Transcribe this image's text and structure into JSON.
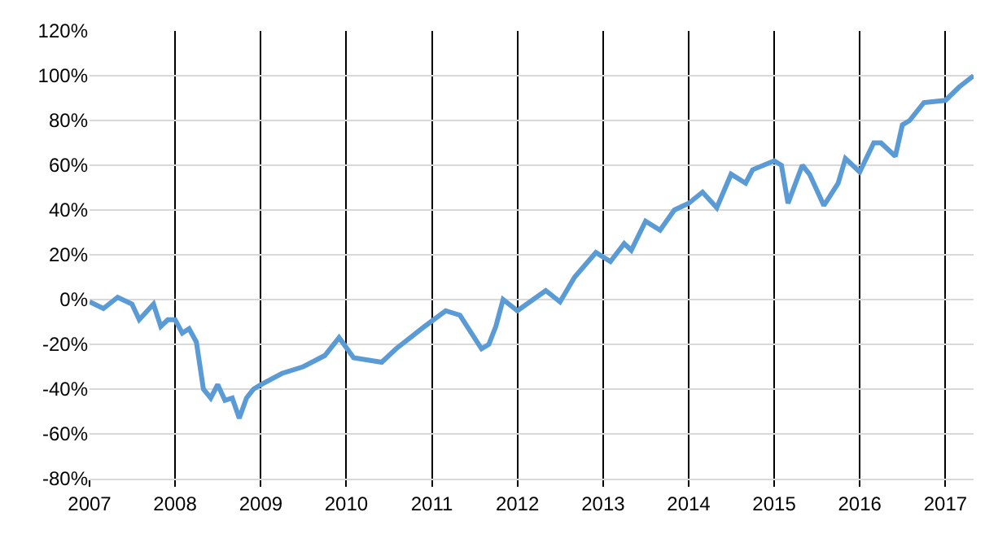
{
  "chart_data": {
    "type": "line",
    "grid": true,
    "marker": "none",
    "line_style": "solid",
    "x": [
      "2007-01",
      "2007-03",
      "2007-05",
      "2007-07",
      "2007-08",
      "2007-10",
      "2007-11",
      "2007-12",
      "2008-01",
      "2008-02",
      "2008-03",
      "2008-04",
      "2008-05",
      "2008-06",
      "2008-07",
      "2008-08",
      "2008-09",
      "2008-10",
      "2008-11",
      "2008-12",
      "2009-01",
      "2009-04",
      "2009-07",
      "2009-10",
      "2009-12",
      "2010-02",
      "2010-06",
      "2010-08",
      "2010-12",
      "2011-03",
      "2011-05",
      "2011-08",
      "2011-09",
      "2011-10",
      "2011-11",
      "2012-01",
      "2012-05",
      "2012-07",
      "2012-09",
      "2012-12",
      "2013-02",
      "2013-04",
      "2013-05",
      "2013-07",
      "2013-09",
      "2013-11",
      "2014-01",
      "2014-03",
      "2014-05",
      "2014-07",
      "2014-09",
      "2014-10",
      "2015-01",
      "2015-02",
      "2015-03",
      "2015-05",
      "2015-06",
      "2015-08",
      "2015-10",
      "2015-11",
      "2016-01",
      "2016-03",
      "2016-04",
      "2016-06",
      "2016-07",
      "2016-08",
      "2016-10",
      "2017-01",
      "2017-03",
      "2017-05"
    ],
    "series": [
      {
        "color": "#5b9bd5",
        "values": [
          -1,
          -4,
          1,
          -2,
          -9,
          -2,
          -12,
          -9,
          -9,
          -15,
          -13,
          -19,
          -40,
          -44,
          -38,
          -45,
          -44,
          -53,
          -44,
          -40,
          -38,
          -33,
          -30,
          -25,
          -17,
          -26,
          -28,
          -22,
          -12,
          -5,
          -7,
          -22,
          -20,
          -12,
          0,
          -5,
          4,
          -1,
          10,
          21,
          17,
          25,
          22,
          35,
          31,
          40,
          43,
          48,
          41,
          56,
          52,
          58,
          62,
          60,
          43,
          60,
          56,
          42,
          52,
          63,
          57,
          70,
          70,
          64,
          78,
          80,
          88,
          89,
          95,
          100
        ]
      }
    ],
    "xlim": [
      "2007-01",
      "2017-05"
    ],
    "xticks": [
      {
        "value": "2007",
        "label": "2007"
      },
      {
        "value": "2008",
        "label": "2008"
      },
      {
        "value": "2009",
        "label": "2009"
      },
      {
        "value": "2010",
        "label": "2010"
      },
      {
        "value": "2011",
        "label": "2011"
      },
      {
        "value": "2012",
        "label": "2012"
      },
      {
        "value": "2013",
        "label": "2013"
      },
      {
        "value": "2014",
        "label": "2014"
      },
      {
        "value": "2015",
        "label": "2015"
      },
      {
        "value": "2016",
        "label": "2016"
      },
      {
        "value": "2017",
        "label": "2017"
      }
    ],
    "ylim": [
      -80,
      120
    ],
    "yticks": [
      {
        "value": -80,
        "label": "-80%"
      },
      {
        "value": -60,
        "label": "-60%"
      },
      {
        "value": -40,
        "label": "-40%"
      },
      {
        "value": -20,
        "label": "-20%"
      },
      {
        "value": 0,
        "label": "0%"
      },
      {
        "value": 20,
        "label": "20%"
      },
      {
        "value": 40,
        "label": "40%"
      },
      {
        "value": 60,
        "label": "60%"
      },
      {
        "value": 80,
        "label": "80%"
      },
      {
        "value": 100,
        "label": "100%"
      },
      {
        "value": 120,
        "label": "120%"
      }
    ]
  }
}
